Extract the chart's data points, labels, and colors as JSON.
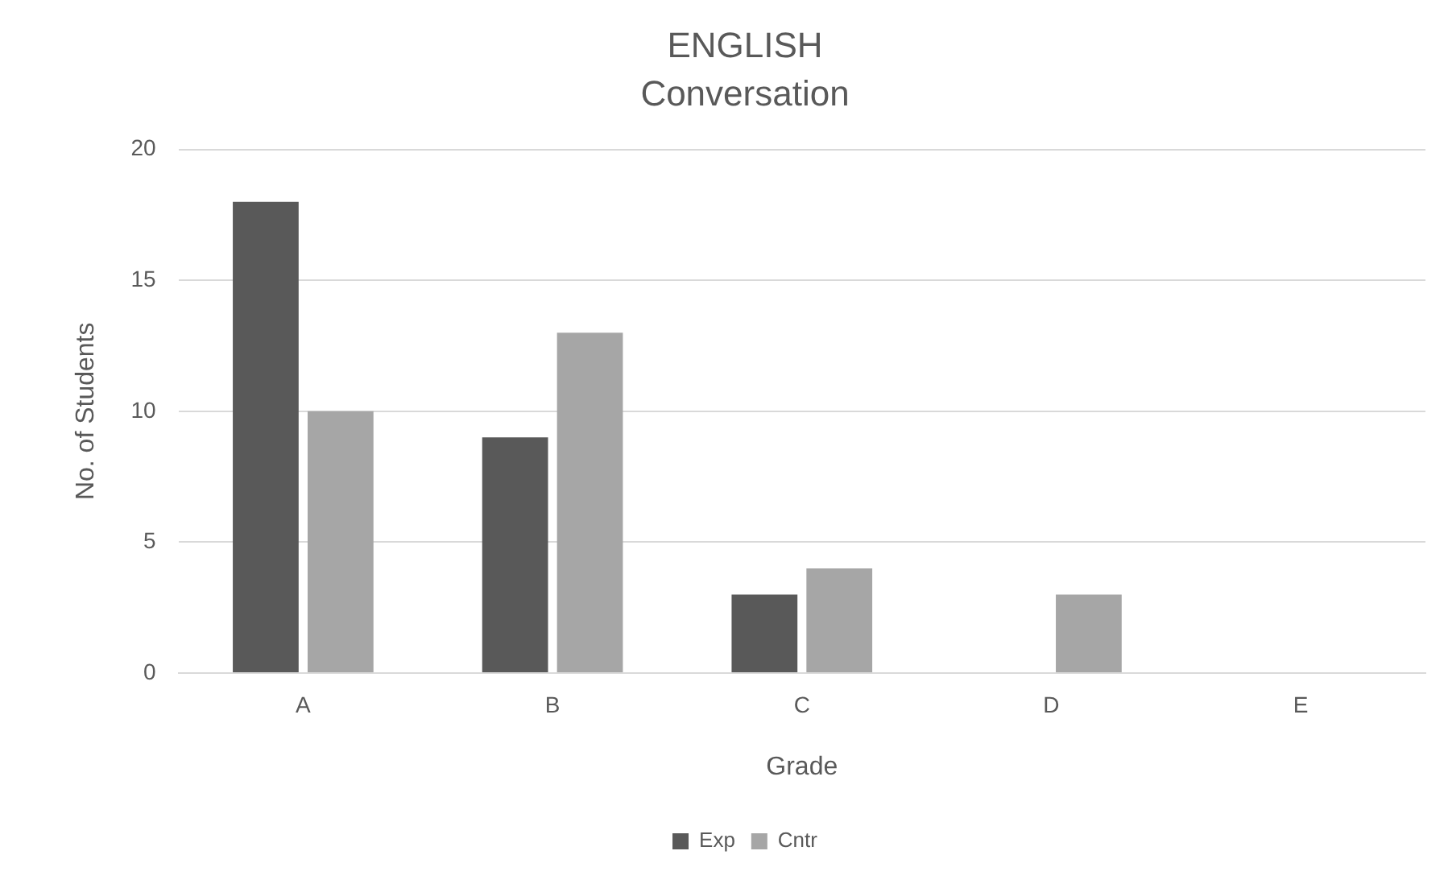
{
  "chart_data": {
    "type": "bar",
    "title": "ENGLISH",
    "subtitle": "Conversation",
    "xlabel": "Grade",
    "ylabel": "No. of Students",
    "categories": [
      "A",
      "B",
      "C",
      "D",
      "E"
    ],
    "series": [
      {
        "name": "Exp",
        "color": "#595959",
        "values": [
          18,
          9,
          3,
          0,
          0
        ]
      },
      {
        "name": "Cntr",
        "color": "#a6a6a6",
        "values": [
          10,
          13,
          4,
          3,
          0
        ]
      }
    ],
    "ylim": [
      0,
      20
    ],
    "yticks": [
      0,
      5,
      10,
      15,
      20
    ],
    "grid": "y",
    "legend": "bottom"
  }
}
